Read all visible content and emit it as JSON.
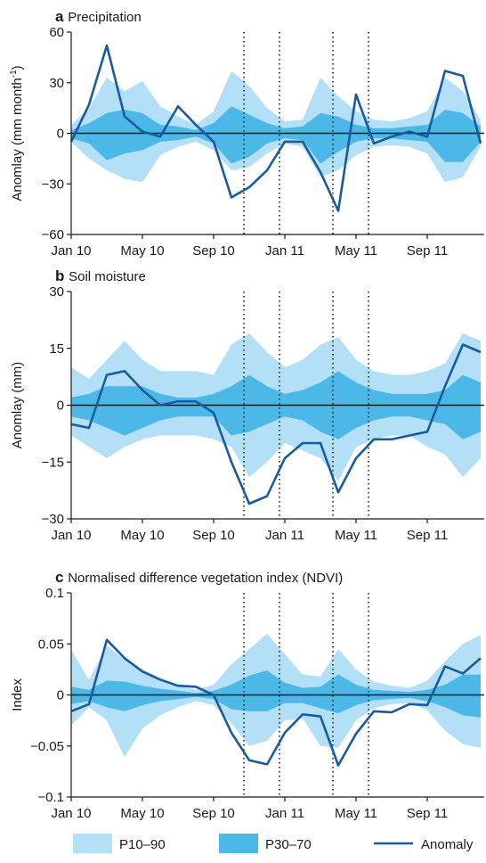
{
  "x_ticks": [
    {
      "label": "Jan 10",
      "t": 0
    },
    {
      "label": "May 10",
      "t": 4
    },
    {
      "label": "Sep 10",
      "t": 8
    },
    {
      "label": "Jan 11",
      "t": 12
    },
    {
      "label": "May 11",
      "t": 16
    },
    {
      "label": "Sep 11",
      "t": 20
    }
  ],
  "event_lines_t": [
    10,
    14,
    18.5,
    22.5
  ],
  "event_lines_note": "unused",
  "colors": {
    "p10_90": "#b3e0f7",
    "p30_70": "#4bb8e8",
    "anomaly": "#1a5a9e",
    "axis": "#1a1a1a",
    "zero_line": "#1a1a1a"
  },
  "legend": {
    "p10_90": "P10–90",
    "p30_70": "P30–70",
    "anomaly": "Anomaly"
  },
  "chart_data": [
    {
      "type": "area",
      "panel_letter": "a",
      "title": "Precipitation",
      "ylabel": "Anomlay (mm month",
      "ylabel_sup": "-1",
      "ylabel_close": ")",
      "ylim": [
        -60,
        60
      ],
      "yticks": [
        -60,
        -30,
        0,
        30,
        60
      ],
      "ytick_labels": [
        "−60",
        "−30",
        "0",
        "30",
        "60"
      ],
      "x": [
        0,
        1,
        2,
        3,
        4,
        5,
        6,
        7,
        8,
        9,
        10,
        11,
        12,
        13,
        14,
        15,
        16,
        17,
        18,
        19,
        20,
        21,
        22,
        23
      ],
      "series": [
        {
          "name": "P10–90",
          "upper": [
            5,
            15,
            33,
            25,
            31,
            16,
            10,
            5,
            13,
            37,
            28,
            15,
            7,
            8,
            33,
            22,
            13,
            8,
            7,
            9,
            13,
            33,
            25,
            8
          ],
          "lower": [
            -5,
            -15,
            -22,
            -27,
            -29,
            -13,
            -8,
            -5,
            -10,
            -22,
            -20,
            -12,
            -6,
            -8,
            -26,
            -22,
            -13,
            -8,
            -7,
            -8,
            -12,
            -29,
            -26,
            -8
          ]
        },
        {
          "name": "P30–70",
          "upper": [
            2,
            6,
            12,
            14,
            12,
            5,
            4,
            2,
            6,
            16,
            11,
            6,
            3,
            4,
            12,
            10,
            5,
            3,
            3,
            4,
            5,
            14,
            12,
            4
          ],
          "lower": [
            -3,
            -6,
            -16,
            -12,
            -10,
            -5,
            -4,
            -2,
            -6,
            -18,
            -14,
            -6,
            -3,
            -4,
            -18,
            -11,
            -5,
            -3,
            -3,
            -4,
            -5,
            -17,
            -17,
            -5
          ]
        },
        {
          "name": "Anomaly",
          "values": [
            -5,
            17,
            52,
            10,
            1,
            -2,
            16,
            5,
            -5,
            -38,
            -32,
            -22,
            -5,
            -5,
            -23,
            -46,
            23,
            -6,
            -2,
            1,
            -2,
            37,
            34,
            -6
          ]
        }
      ]
    },
    {
      "type": "area",
      "panel_letter": "b",
      "title": "Soil moisture",
      "ylabel": "Anomlay (mm)",
      "ylabel_sup": "",
      "ylabel_close": "",
      "ylim": [
        -30,
        30
      ],
      "yticks": [
        -30,
        -15,
        0,
        15,
        30
      ],
      "ytick_labels": [
        "−30",
        "−15",
        "0",
        "15",
        "30"
      ],
      "x": [
        0,
        1,
        2,
        3,
        4,
        5,
        6,
        7,
        8,
        9,
        10,
        11,
        12,
        13,
        14,
        15,
        16,
        17,
        18,
        19,
        20,
        21,
        22,
        23
      ],
      "series": [
        {
          "name": "P10–90",
          "upper": [
            10,
            7,
            12,
            17,
            12,
            9,
            9,
            9,
            8,
            16,
            19,
            14,
            10,
            12,
            16,
            18,
            12,
            9,
            8,
            8,
            9,
            11,
            19,
            17
          ],
          "lower": [
            -8,
            -11,
            -14,
            -11,
            -9,
            -8,
            -8,
            -8,
            -9,
            -11,
            -19,
            -15,
            -10,
            -12,
            -14,
            -20,
            -11,
            -9,
            -8,
            -8,
            -11,
            -13,
            -19,
            -14
          ]
        },
        {
          "name": "P30–70",
          "upper": [
            2,
            3,
            5,
            5,
            5,
            3,
            2,
            2,
            3,
            5,
            8,
            5,
            3,
            4,
            6,
            9,
            6,
            4,
            3,
            3,
            3,
            4,
            8,
            6
          ],
          "lower": [
            -3,
            -4,
            -6,
            -8,
            -6,
            -4,
            -3,
            -3,
            -3,
            -8,
            -7,
            -5,
            -3,
            -4,
            -7,
            -9,
            -6,
            -4,
            -3,
            -3,
            -4,
            -5,
            -9,
            -7
          ]
        },
        {
          "name": "Anomaly",
          "values": [
            -5,
            -6,
            8,
            9,
            4,
            0,
            1,
            1,
            -2,
            -15,
            -26,
            -24,
            -14,
            -10,
            -10,
            -23,
            -14,
            -9,
            -9,
            -8,
            -7,
            5,
            16,
            14
          ]
        }
      ]
    },
    {
      "type": "area",
      "panel_letter": "c",
      "title": "Normalised difference vegetation index (NDVI)",
      "ylabel": "Index",
      "ylabel_sup": "",
      "ylabel_close": "",
      "ylim": [
        -0.1,
        0.1
      ],
      "yticks": [
        -0.1,
        -0.05,
        0,
        0.05,
        0.1
      ],
      "ytick_labels": [
        "−0.1",
        "−0.05",
        "0",
        "0.05",
        "0.1"
      ],
      "x": [
        0,
        1,
        2,
        3,
        4,
        5,
        6,
        7,
        8,
        9,
        10,
        11,
        12,
        13,
        14,
        15,
        16,
        17,
        18,
        19,
        20,
        21,
        22,
        23
      ],
      "series": [
        {
          "name": "P10–90",
          "upper": [
            0.044,
            0.015,
            0.048,
            0.035,
            0.025,
            0.016,
            0.009,
            0.005,
            0.01,
            0.03,
            0.045,
            0.06,
            0.04,
            0.02,
            0.018,
            0.045,
            0.025,
            0.013,
            0.009,
            0.007,
            0.014,
            0.033,
            0.05,
            0.059
          ],
          "lower": [
            -0.03,
            -0.012,
            -0.025,
            -0.061,
            -0.033,
            -0.02,
            -0.012,
            -0.006,
            -0.01,
            -0.028,
            -0.05,
            -0.045,
            -0.025,
            -0.023,
            -0.05,
            -0.052,
            -0.025,
            -0.013,
            -0.009,
            -0.008,
            -0.015,
            -0.035,
            -0.048,
            -0.052
          ]
        },
        {
          "name": "P30–70",
          "upper": [
            0.008,
            0.005,
            0.014,
            0.013,
            0.009,
            0.006,
            0.004,
            0.002,
            0.004,
            0.01,
            0.019,
            0.024,
            0.012,
            0.007,
            0.008,
            0.02,
            0.01,
            0.005,
            0.004,
            0.003,
            0.005,
            0.01,
            0.02,
            0.02
          ],
          "lower": [
            -0.009,
            -0.006,
            -0.012,
            -0.016,
            -0.01,
            -0.006,
            -0.004,
            -0.002,
            -0.004,
            -0.014,
            -0.016,
            -0.016,
            -0.008,
            -0.008,
            -0.013,
            -0.018,
            -0.01,
            -0.005,
            -0.004,
            -0.003,
            -0.006,
            -0.012,
            -0.02,
            -0.022
          ]
        },
        {
          "name": "Anomaly",
          "values": [
            -0.016,
            -0.009,
            0.054,
            0.036,
            0.023,
            0.015,
            0.009,
            0.008,
            0.0,
            -0.037,
            -0.064,
            -0.068,
            -0.037,
            -0.019,
            -0.021,
            -0.069,
            -0.038,
            -0.016,
            -0.017,
            -0.009,
            -0.01,
            0.028,
            0.021,
            0.036
          ]
        }
      ]
    }
  ]
}
